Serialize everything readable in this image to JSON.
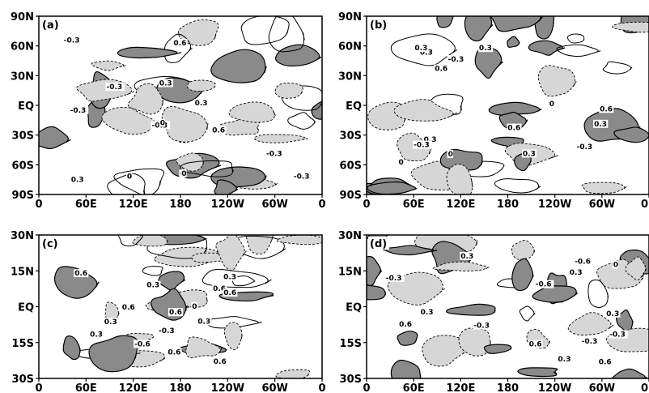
{
  "figure": {
    "colors": {
      "positive_shading": "#8a8a8a",
      "negative_shading": "#d6d6d6",
      "contour": "#000000",
      "background": "#ffffff"
    },
    "contour_levels": [
      -0.6,
      -0.3,
      0,
      0.3,
      0.6
    ],
    "panels": [
      {
        "id": "a",
        "label": "(a)",
        "lat_range": [
          -90,
          90
        ],
        "yticks": [
          "90N",
          "60N",
          "30N",
          "EQ",
          "30S",
          "60S",
          "90S"
        ],
        "xticks": [
          "0",
          "60E",
          "120E",
          "180",
          "120W",
          "60W",
          "0"
        ],
        "contour_labels": [
          "-0.3",
          "0",
          "0.3",
          "-0.3",
          "0",
          "0.6",
          "-0.3",
          "0",
          "0.6",
          "0.3",
          "-0.3",
          "0",
          "0.3",
          "-0.3",
          "-0.3"
        ]
      },
      {
        "id": "b",
        "label": "(b)",
        "lat_range": [
          -90,
          90
        ],
        "yticks": [
          "90N",
          "60N",
          "30N",
          "EQ",
          "30S",
          "60S",
          "90S"
        ],
        "xticks": [
          "0",
          "60E",
          "120E",
          "180",
          "120W",
          "60W",
          "0"
        ],
        "contour_labels": [
          "0.3",
          "0",
          "0.6",
          "0.3",
          "0",
          "0.3",
          "-0.3",
          "0.6",
          "0.6",
          "0.3",
          "0.3",
          "-0.3",
          "0",
          "-0.3",
          "0.3"
        ]
      },
      {
        "id": "c",
        "label": "(c)",
        "lat_range": [
          -30,
          30
        ],
        "yticks": [
          "30N",
          "15N",
          "EQ",
          "15S",
          "30S"
        ],
        "xticks": [
          "0",
          "60E",
          "120E",
          "180",
          "120W",
          "60W",
          "0"
        ],
        "contour_labels": [
          "0.6",
          "0.3",
          "0.3",
          "0.6",
          "0.6",
          "0.3",
          "0.6",
          "0.6",
          "0",
          "-0.6",
          "0.3",
          "0.6",
          "-0.3",
          "0.3",
          "0.6"
        ]
      },
      {
        "id": "d",
        "label": "(d)",
        "lat_range": [
          -30,
          30
        ],
        "yticks": [
          "30N",
          "15N",
          "EQ",
          "15S",
          "30S"
        ],
        "xticks": [
          "0",
          "60E",
          "120E",
          "180",
          "120W",
          "60W",
          "0"
        ],
        "contour_labels": [
          "-0.3",
          "0.3",
          "-0.3",
          "0.3",
          "0.6",
          "-0.6",
          "0.3",
          "-0.3",
          "0.6",
          "0.3",
          "-0.6",
          "0.6",
          "-0.3",
          "0.3",
          "0"
        ]
      }
    ]
  }
}
